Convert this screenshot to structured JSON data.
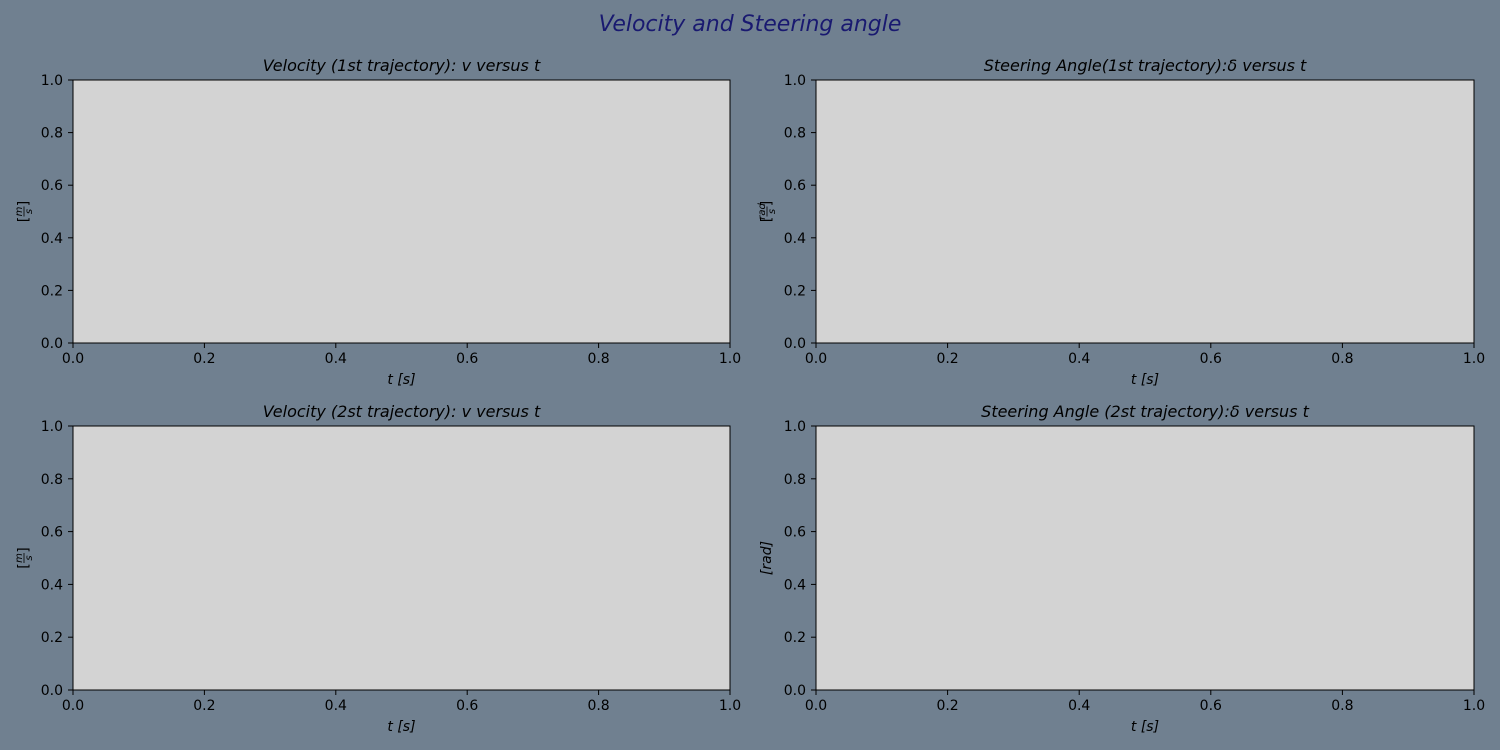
{
  "figure": {
    "suptitle": "Velocity and Steering angle",
    "background": "#708090",
    "title_color": "#191970",
    "axes_facecolor": "#d3d3d3"
  },
  "chart_data": [
    {
      "type": "line",
      "title": "Velocity (1st trajectory): v versus t",
      "xlabel": "t [s]",
      "ylabel": {
        "kind": "fraction",
        "numerator": "m",
        "denominator": "s"
      },
      "xlim": [
        0,
        1
      ],
      "ylim": [
        0,
        1
      ],
      "xticks": [
        "0.0",
        "0.2",
        "0.4",
        "0.6",
        "0.8",
        "1.0"
      ],
      "yticks": [
        "0.0",
        "0.2",
        "0.4",
        "0.6",
        "0.8",
        "1.0"
      ],
      "series": []
    },
    {
      "type": "line",
      "title": "Steering Angle(1st trajectory):δ versus t",
      "xlabel": "t [s]",
      "ylabel": {
        "kind": "fraction",
        "numerator": "rad",
        "denominator": "s"
      },
      "xlim": [
        0,
        1
      ],
      "ylim": [
        0,
        1
      ],
      "xticks": [
        "0.0",
        "0.2",
        "0.4",
        "0.6",
        "0.8",
        "1.0"
      ],
      "yticks": [
        "0.0",
        "0.2",
        "0.4",
        "0.6",
        "0.8",
        "1.0"
      ],
      "series": []
    },
    {
      "type": "line",
      "title": "Velocity (2st trajectory): v versus t",
      "xlabel": "t [s]",
      "ylabel": {
        "kind": "fraction",
        "numerator": "m",
        "denominator": "s"
      },
      "xlim": [
        0,
        1
      ],
      "ylim": [
        0,
        1
      ],
      "xticks": [
        "0.0",
        "0.2",
        "0.4",
        "0.6",
        "0.8",
        "1.0"
      ],
      "yticks": [
        "0.0",
        "0.2",
        "0.4",
        "0.6",
        "0.8",
        "1.0"
      ],
      "series": []
    },
    {
      "type": "line",
      "title": "Steering Angle (2st trajectory):δ versus t",
      "xlabel": "t [s]",
      "ylabel": {
        "kind": "text",
        "text": "[rad]"
      },
      "xlim": [
        0,
        1
      ],
      "ylim": [
        0,
        1
      ],
      "xticks": [
        "0.0",
        "0.2",
        "0.4",
        "0.6",
        "0.8",
        "1.0"
      ],
      "yticks": [
        "0.0",
        "0.2",
        "0.4",
        "0.6",
        "0.8",
        "1.0"
      ],
      "series": []
    }
  ]
}
